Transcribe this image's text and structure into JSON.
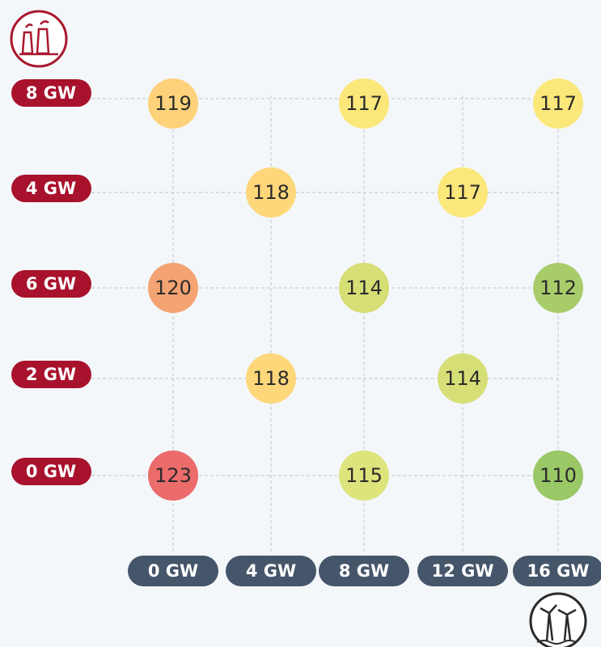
{
  "chart_data": {
    "type": "bubble-grid",
    "rows": [
      "8 GW",
      "4 GW",
      "6 GW",
      "2 GW",
      "0 GW"
    ],
    "columns": [
      "0 GW",
      "4 GW",
      "8 GW",
      "12 GW",
      "16 GW"
    ],
    "cells": [
      {
        "row": 0,
        "col": 0,
        "value": 119,
        "color": "#fdd27a"
      },
      {
        "row": 0,
        "col": 2,
        "value": 117,
        "color": "#fbe77a"
      },
      {
        "row": 0,
        "col": 4,
        "value": 117,
        "color": "#fbe77a"
      },
      {
        "row": 1,
        "col": 1,
        "value": 118,
        "color": "#fdd77a"
      },
      {
        "row": 1,
        "col": 3,
        "value": 117,
        "color": "#fbe77a"
      },
      {
        "row": 2,
        "col": 0,
        "value": 120,
        "color": "#f4a373"
      },
      {
        "row": 2,
        "col": 2,
        "value": 114,
        "color": "#d6de76"
      },
      {
        "row": 2,
        "col": 4,
        "value": 112,
        "color": "#a9cc6a"
      },
      {
        "row": 3,
        "col": 1,
        "value": 118,
        "color": "#fdd77a"
      },
      {
        "row": 3,
        "col": 3,
        "value": 114,
        "color": "#d6de76"
      },
      {
        "row": 4,
        "col": 0,
        "value": 123,
        "color": "#ec6b6b"
      },
      {
        "row": 4,
        "col": 2,
        "value": 115,
        "color": "#dde47c"
      },
      {
        "row": 4,
        "col": 4,
        "value": 110,
        "color": "#9ac866"
      }
    ]
  }
}
